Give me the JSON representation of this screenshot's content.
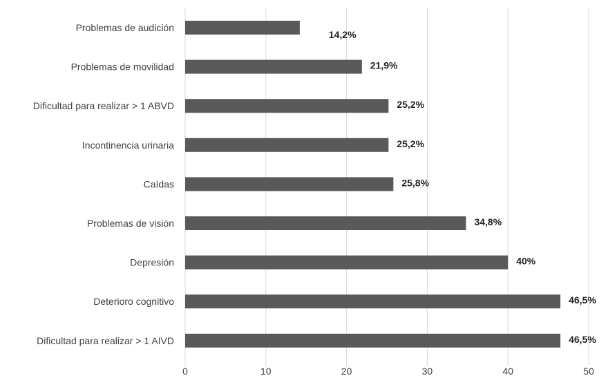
{
  "chart_data": {
    "type": "bar",
    "orientation": "horizontal",
    "title": "",
    "xlabel": "",
    "ylabel": "",
    "xlim": [
      0,
      50
    ],
    "grid": true,
    "x_ticks": [
      "0",
      "10",
      "20",
      "30",
      "40",
      "50"
    ],
    "categories": [
      "Problemas de audición",
      "Problemas de movilidad",
      "Dificultad para realizar > 1 ABVD",
      "Incontinencia urinaria",
      "Caídas",
      "Problemas de visión",
      "Depresión",
      "Deterioro cognitivo",
      "Dificultad para realizar > 1 AIVD"
    ],
    "values": [
      14.2,
      21.9,
      25.2,
      25.2,
      25.8,
      34.8,
      40,
      46.5,
      46.5
    ],
    "data_labels": [
      "14,2%",
      "21,9%",
      "25,2%",
      "25,2%",
      "25,8%",
      "34,8%",
      "40%",
      "46,5%",
      "46,5%"
    ],
    "bar_color": "#595959",
    "grid_color": "#d9d9d9"
  }
}
